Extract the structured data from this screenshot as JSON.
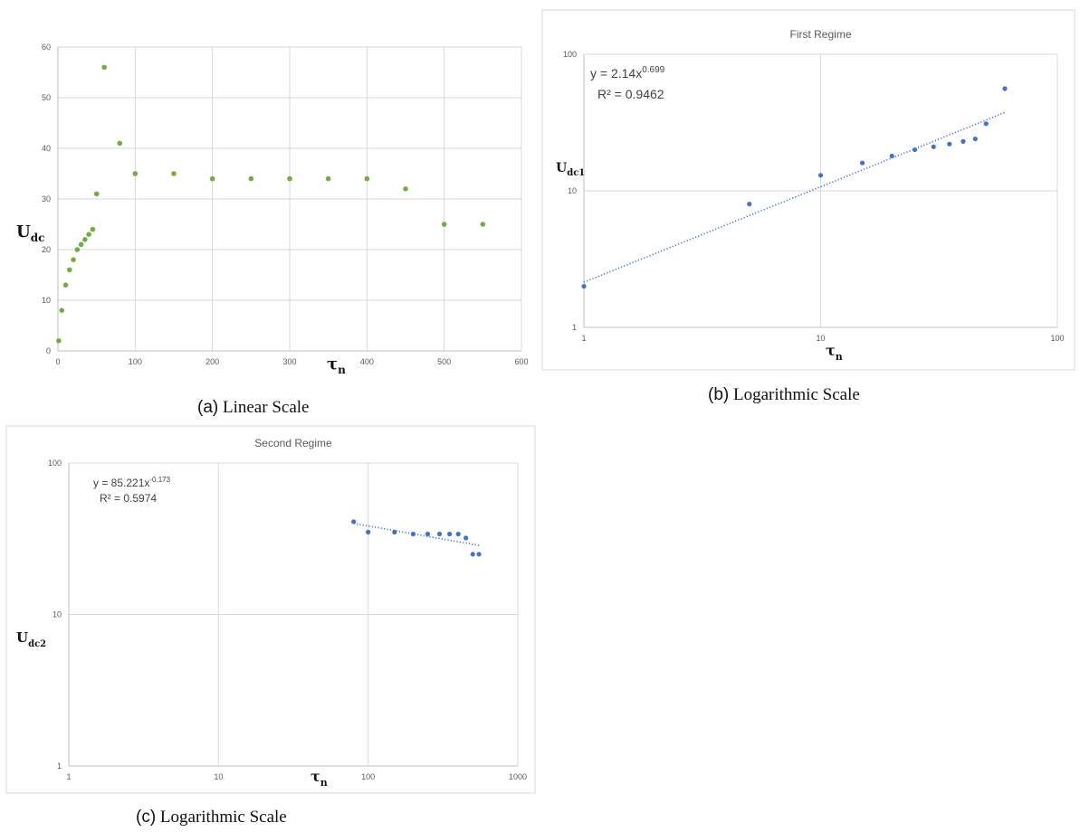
{
  "captions": {
    "a": {
      "label": "(a)",
      "text": "Linear Scale"
    },
    "b": {
      "label": "(b)",
      "text": "Logarithmic Scale"
    },
    "c": {
      "label": "(c)",
      "text": "Logarithmic Scale"
    }
  },
  "chart_data": [
    {
      "id": "a",
      "type": "scatter",
      "title": "",
      "xlabel": "τ",
      "xlabel_sub": "n",
      "ylabel": "U",
      "ylabel_sub": "dc",
      "xlim": [
        0,
        600
      ],
      "ylim": [
        0,
        60
      ],
      "xticks": [
        0,
        100,
        200,
        300,
        400,
        500,
        600
      ],
      "yticks": [
        0,
        10,
        20,
        30,
        40,
        50,
        60
      ],
      "grid": true,
      "colors": {
        "points": "#70ad47"
      },
      "series": [
        {
          "x": [
            1,
            5,
            10,
            15,
            20,
            25,
            30,
            35,
            40,
            45,
            50,
            60,
            80,
            100,
            150,
            200,
            250,
            300,
            350,
            400,
            450,
            500,
            550
          ],
          "y": [
            2,
            8,
            13,
            16,
            18,
            20,
            21,
            22,
            23,
            24,
            31,
            56,
            41,
            35,
            35,
            34,
            34,
            34,
            34,
            34,
            32,
            25,
            25
          ]
        }
      ]
    },
    {
      "id": "b",
      "type": "scatter",
      "title": "First Regime",
      "xlabel": "τ",
      "xlabel_sub": "n",
      "ylabel": "U",
      "ylabel_sub": "dc1",
      "xscale": "log",
      "yscale": "log",
      "xlim": [
        1,
        100
      ],
      "ylim": [
        1,
        100
      ],
      "xticks": [
        1,
        10,
        100
      ],
      "yticks": [
        1,
        10,
        100
      ],
      "grid": true,
      "colors": {
        "points": "#4472c4",
        "trendline": "#4472c4"
      },
      "equation": {
        "prefix": "y = 2.14x",
        "exponent": "0.699",
        "r2": "R² = 0.9462"
      },
      "trendline": {
        "a": 2.14,
        "b": 0.699,
        "x_range": [
          1,
          60
        ]
      },
      "series": [
        {
          "x": [
            1,
            5,
            10,
            15,
            20,
            25,
            30,
            35,
            40,
            45,
            50,
            60
          ],
          "y": [
            2,
            8,
            13,
            16,
            18,
            20,
            21,
            22,
            23,
            24,
            31,
            56
          ]
        }
      ]
    },
    {
      "id": "c",
      "type": "scatter",
      "title": "Second Regime",
      "xlabel": "τ",
      "xlabel_sub": "n",
      "ylabel": "U",
      "ylabel_sub": "dc2",
      "xscale": "log",
      "yscale": "log",
      "xlim": [
        1,
        1000
      ],
      "ylim": [
        1,
        100
      ],
      "xticks": [
        1,
        10,
        100,
        1000
      ],
      "yticks": [
        1,
        10,
        100
      ],
      "grid": true,
      "colors": {
        "points": "#4472c4",
        "trendline": "#4472c4"
      },
      "equation": {
        "prefix": "y = 85.221x",
        "exponent": "-0.173",
        "r2": "R² = 0.5974"
      },
      "trendline": {
        "a": 85.221,
        "b": -0.173,
        "x_range": [
          80,
          550
        ]
      },
      "series": [
        {
          "x": [
            80,
            100,
            150,
            200,
            250,
            300,
            350,
            400,
            450,
            500,
            550
          ],
          "y": [
            41,
            35,
            35,
            34,
            34,
            34,
            34,
            34,
            32,
            25,
            25
          ]
        }
      ]
    }
  ]
}
